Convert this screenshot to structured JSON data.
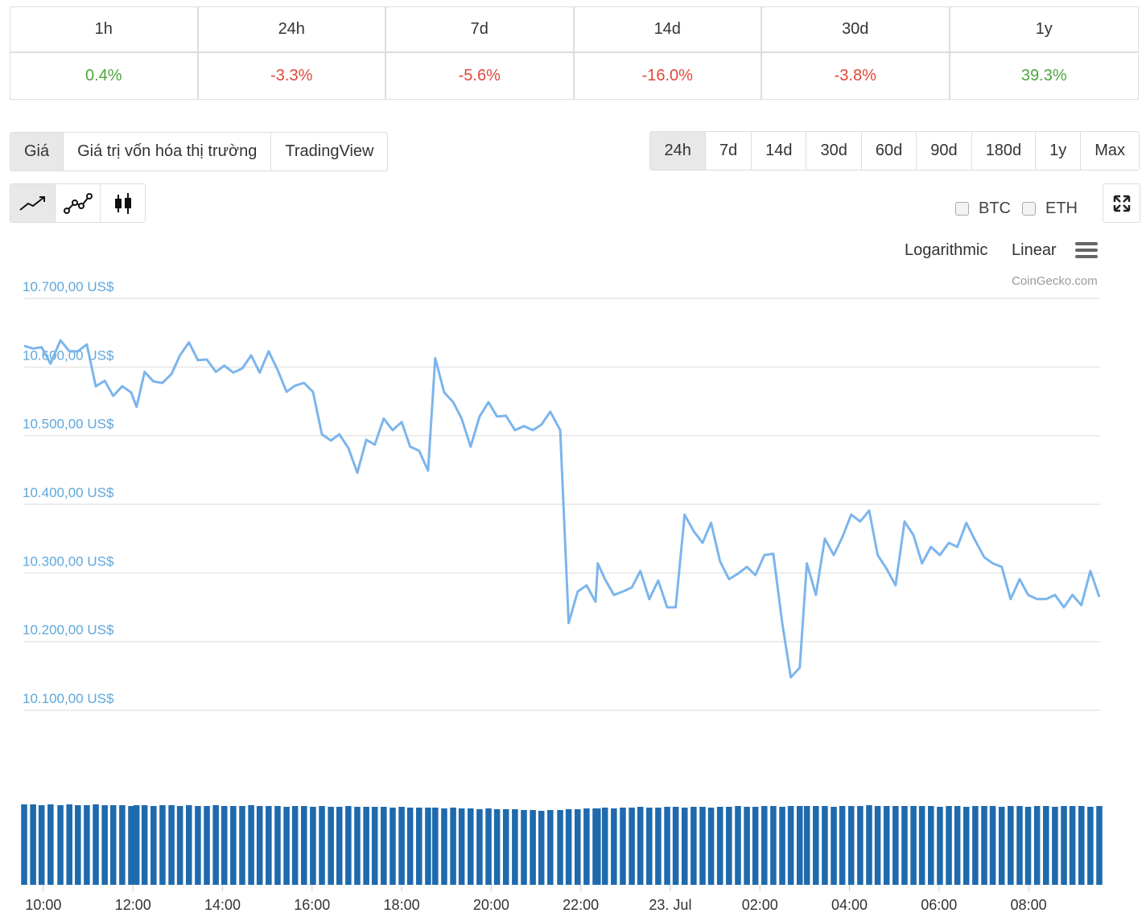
{
  "change_table": {
    "headers": [
      "1h",
      "24h",
      "7d",
      "14d",
      "30d",
      "1y"
    ],
    "values": [
      "0.4%",
      "-3.3%",
      "-5.6%",
      "-16.0%",
      "-3.8%",
      "39.3%"
    ],
    "colors": [
      "#4ca83c",
      "#e0483a",
      "#e0483a",
      "#e0483a",
      "#e0483a",
      "#4ca83c"
    ]
  },
  "tabs": [
    "Giá",
    "Giá trị vốn hóa thị trường",
    "TradingView"
  ],
  "active_tab": 0,
  "ranges": [
    "24h",
    "7d",
    "14d",
    "30d",
    "60d",
    "90d",
    "180d",
    "1y",
    "Max"
  ],
  "active_range": 0,
  "compare": [
    "BTC",
    "ETH"
  ],
  "scales": [
    "Logarithmic",
    "Linear"
  ],
  "credit": "CoinGecko.com",
  "chart_data": {
    "type": "line",
    "color": "#7cb5ec",
    "volume_color": "#1f6aad",
    "grid": true,
    "x": [
      9.57,
      9.77,
      9.96,
      10.16,
      10.38,
      10.58,
      10.77,
      10.97,
      11.17,
      11.37,
      11.56,
      11.76,
      11.96,
      12.08,
      12.26,
      12.46,
      12.66,
      12.86,
      13.05,
      13.25,
      13.45,
      13.65,
      13.85,
      14.04,
      14.24,
      14.44,
      14.64,
      14.83,
      15.03,
      15.23,
      15.43,
      15.62,
      15.82,
      16.02,
      16.22,
      16.42,
      16.61,
      16.81,
      17.01,
      17.21,
      17.4,
      17.6,
      17.8,
      18.0,
      18.19,
      18.39,
      18.59,
      18.75,
      18.95,
      19.15,
      19.34,
      19.54,
      19.74,
      19.94,
      20.13,
      20.33,
      20.53,
      20.73,
      20.93,
      21.12,
      21.32,
      21.54,
      21.73,
      21.93,
      22.13,
      22.33,
      22.38,
      22.54,
      22.74,
      22.94,
      23.14,
      23.33,
      23.53,
      23.73,
      23.93,
      24.12,
      24.32,
      24.52,
      24.72,
      24.91,
      25.11,
      25.31,
      25.51,
      25.71,
      25.9,
      26.1,
      26.3,
      26.5,
      26.69,
      26.89,
      27.05,
      27.25,
      27.45,
      27.65,
      27.84,
      28.04,
      28.24,
      28.44,
      28.63,
      28.83,
      29.03,
      29.23,
      29.43,
      29.62,
      29.82,
      30.02,
      30.22,
      30.41,
      30.61,
      30.81,
      31.01,
      31.2,
      31.4,
      31.6,
      31.8,
      31.99,
      32.19,
      32.39,
      32.59,
      32.79,
      32.98,
      33.18,
      33.38,
      33.58
    ],
    "values": [
      10631,
      10627,
      10629,
      10605,
      10639,
      10623,
      10623,
      10633,
      10572,
      10580,
      10558,
      10572,
      10563,
      10542,
      10593,
      10579,
      10577,
      10590,
      10617,
      10636,
      10610,
      10611,
      10593,
      10602,
      10592,
      10598,
      10617,
      10592,
      10623,
      10596,
      10564,
      10573,
      10577,
      10564,
      10502,
      10493,
      10502,
      10482,
      10446,
      10494,
      10487,
      10525,
      10508,
      10520,
      10484,
      10478,
      10449,
      10613,
      10563,
      10549,
      10525,
      10484,
      10528,
      10549,
      10528,
      10529,
      10508,
      10514,
      10508,
      10516,
      10535,
      10508,
      10227,
      10273,
      10282,
      10258,
      10314,
      10291,
      10268,
      10273,
      10279,
      10303,
      10262,
      10289,
      10250,
      10250,
      10385,
      10361,
      10344,
      10373,
      10317,
      10291,
      10299,
      10309,
      10297,
      10326,
      10328,
      10227,
      10148,
      10162,
      10314,
      10268,
      10350,
      10326,
      10352,
      10385,
      10375,
      10391,
      10326,
      10306,
      10282,
      10375,
      10355,
      10314,
      10338,
      10326,
      10344,
      10338,
      10373,
      10347,
      10323,
      10314,
      10309,
      10262,
      10291,
      10268,
      10262,
      10262,
      10268,
      10250,
      10268,
      10253,
      10303,
      10265
    ],
    "volume": [
      100,
      100,
      99,
      100,
      99,
      100,
      99,
      99,
      100,
      99,
      99,
      99,
      98,
      99,
      99,
      98,
      99,
      99,
      98,
      99,
      98,
      98,
      99,
      98,
      98,
      98,
      99,
      98,
      98,
      98,
      97,
      98,
      98,
      97,
      98,
      97,
      97,
      98,
      97,
      97,
      97,
      97,
      96,
      97,
      96,
      96,
      96,
      96,
      95,
      96,
      95,
      95,
      94,
      95,
      94,
      94,
      94,
      93,
      93,
      92,
      93,
      93,
      94,
      94,
      95,
      95,
      95,
      96,
      95,
      96,
      96,
      97,
      96,
      96,
      97,
      97,
      96,
      97,
      97,
      96,
      97,
      97,
      98,
      97,
      97,
      98,
      98,
      97,
      98,
      98,
      98,
      98,
      98,
      97,
      98,
      98,
      98,
      99,
      98,
      98,
      98,
      98,
      98,
      98,
      98,
      97,
      98,
      98,
      97,
      98,
      98,
      98,
      97,
      98,
      98,
      97,
      98,
      98,
      97,
      98,
      98,
      98,
      97,
      98
    ],
    "xlim": [
      9.57,
      33.58
    ],
    "xticks": [
      {
        "value": 10,
        "label": "10:00"
      },
      {
        "value": 12,
        "label": "12:00"
      },
      {
        "value": 14,
        "label": "14:00"
      },
      {
        "value": 16,
        "label": "16:00"
      },
      {
        "value": 18,
        "label": "18:00"
      },
      {
        "value": 20,
        "label": "20:00"
      },
      {
        "value": 22,
        "label": "22:00"
      },
      {
        "value": 24,
        "label": "23. Jul"
      },
      {
        "value": 26,
        "label": "02:00"
      },
      {
        "value": 28,
        "label": "04:00"
      },
      {
        "value": 30,
        "label": "06:00"
      },
      {
        "value": 32,
        "label": "08:00"
      }
    ],
    "ylim": [
      10100,
      10700
    ],
    "yticks": [
      {
        "value": 10700,
        "label": "10.700,00 US$"
      },
      {
        "value": 10600,
        "label": "10.600,00 US$"
      },
      {
        "value": 10500,
        "label": "10.500,00 US$"
      },
      {
        "value": 10400,
        "label": "10.400,00 US$"
      },
      {
        "value": 10300,
        "label": "10.300,00 US$"
      },
      {
        "value": 10200,
        "label": "10.200,00 US$"
      },
      {
        "value": 10100,
        "label": "10.100,00 US$"
      }
    ]
  }
}
